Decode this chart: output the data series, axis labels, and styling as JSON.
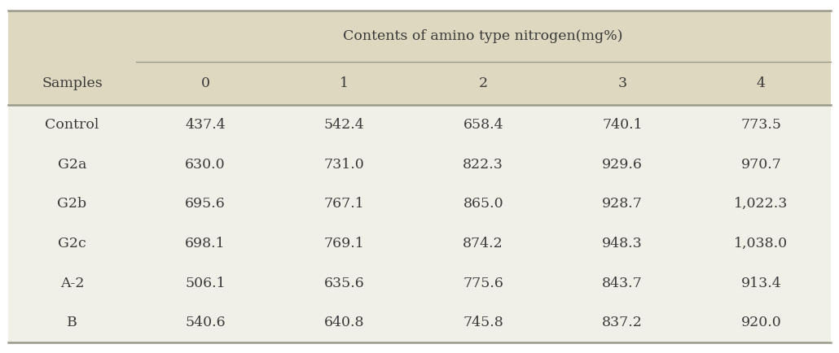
{
  "title": "Contents of amino type nitrogen(mg%)",
  "col_headers": [
    "0",
    "1",
    "2",
    "3",
    "4"
  ],
  "row_headers": [
    "Samples",
    "Control",
    "G2a",
    "G2b",
    "G2c",
    "A-2",
    "B"
  ],
  "table_data": [
    [
      "437.4",
      "542.4",
      "658.4",
      "740.1",
      "773.5"
    ],
    [
      "630.0",
      "731.0",
      "822.3",
      "929.6",
      "970.7"
    ],
    [
      "695.6",
      "767.1",
      "865.0",
      "928.7",
      "1,022.3"
    ],
    [
      "698.1",
      "769.1",
      "874.2",
      "948.3",
      "1,038.0"
    ],
    [
      "506.1",
      "635.6",
      "775.6",
      "843.7",
      "913.4"
    ],
    [
      "540.6",
      "640.8",
      "745.8",
      "837.2",
      "920.0"
    ]
  ],
  "header_bg_color": "#ddd8bf",
  "body_bg_color": "#f0efe8",
  "fig_bg_color": "#ffffff",
  "text_color": "#3a3a3a",
  "line_color": "#9a9a8a",
  "title_fontsize": 12.5,
  "header_fontsize": 12.5,
  "cell_fontsize": 12.5,
  "fig_width": 10.3,
  "fig_height": 4.34,
  "dpi": 100
}
